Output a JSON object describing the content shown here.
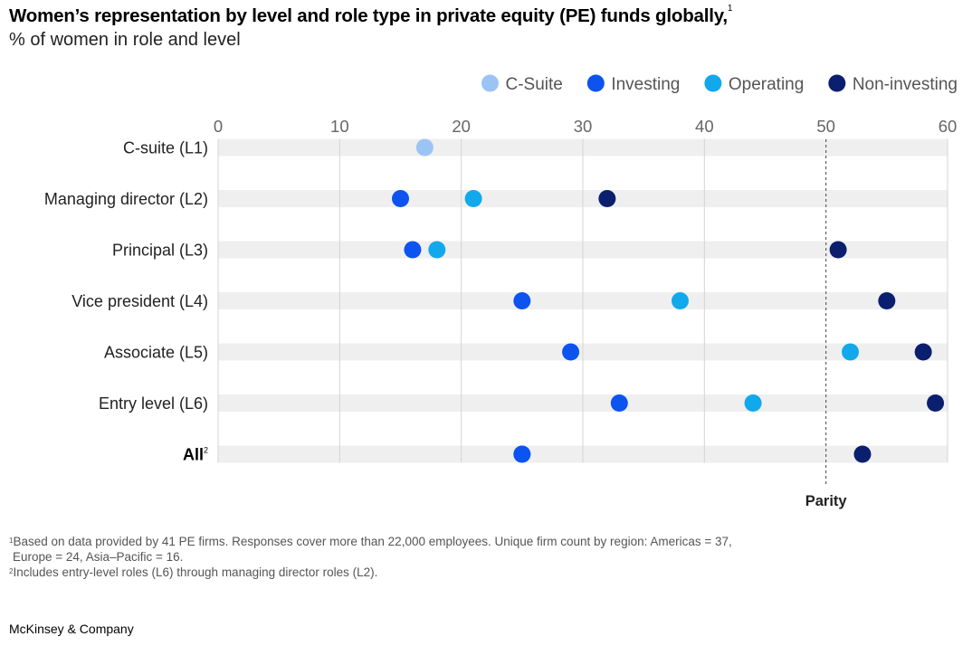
{
  "header": {
    "title": "Women’s representation by level and role type in private equity (PE) funds globally,",
    "title_footnote": "1",
    "subtitle": "% of women in role and level"
  },
  "chart_data": {
    "type": "scatter",
    "orientation": "horizontal dot plot",
    "xlim": [
      0,
      60
    ],
    "x_ticks": [
      "0",
      "10",
      "20",
      "30",
      "40",
      "50",
      "60"
    ],
    "grid": true,
    "legend_position": "top-right",
    "categories": [
      "C-suite (L1)",
      "Managing director (L2)",
      "Principal (L3)",
      "Vice president (L4)",
      "Associate (L5)",
      "Entry level (L6)",
      "All"
    ],
    "category_footnotes": [
      "",
      "",
      "",
      "",
      "",
      "",
      "2"
    ],
    "bold_categories": [
      "All"
    ],
    "series": [
      {
        "name": "C-Suite",
        "color": "#9bc4f5",
        "values": [
          17,
          null,
          null,
          null,
          null,
          null,
          null
        ]
      },
      {
        "name": "Operating",
        "color": "#12a8ec",
        "values": [
          null,
          21,
          18,
          38,
          52,
          44,
          25
        ]
      },
      {
        "name": "Investing",
        "color": "#0c53f0",
        "values": [
          null,
          15,
          16,
          25,
          29,
          33,
          25
        ]
      },
      {
        "name": "Non-investing",
        "color": "#0b1f6f",
        "values": [
          null,
          32,
          51,
          55,
          58,
          59,
          53
        ]
      }
    ],
    "legend_order": [
      "C-Suite",
      "Investing",
      "Operating",
      "Non-investing"
    ],
    "reference_line": {
      "value": 50,
      "label": "Parity",
      "style": "dashed"
    }
  },
  "footnotes": [
    {
      "mark": "1",
      "text": "Based on data provided by 41 PE firms. Responses cover more than 22,000 employees. Unique firm count by region: Americas = 37,"
    },
    {
      "mark": "",
      "text": "Europe = 24, Asia–Pacific = 16."
    },
    {
      "mark": "2",
      "text": "Includes entry-level roles (L6) through managing director roles (L2)."
    }
  ],
  "brand": "McKinsey & Company"
}
